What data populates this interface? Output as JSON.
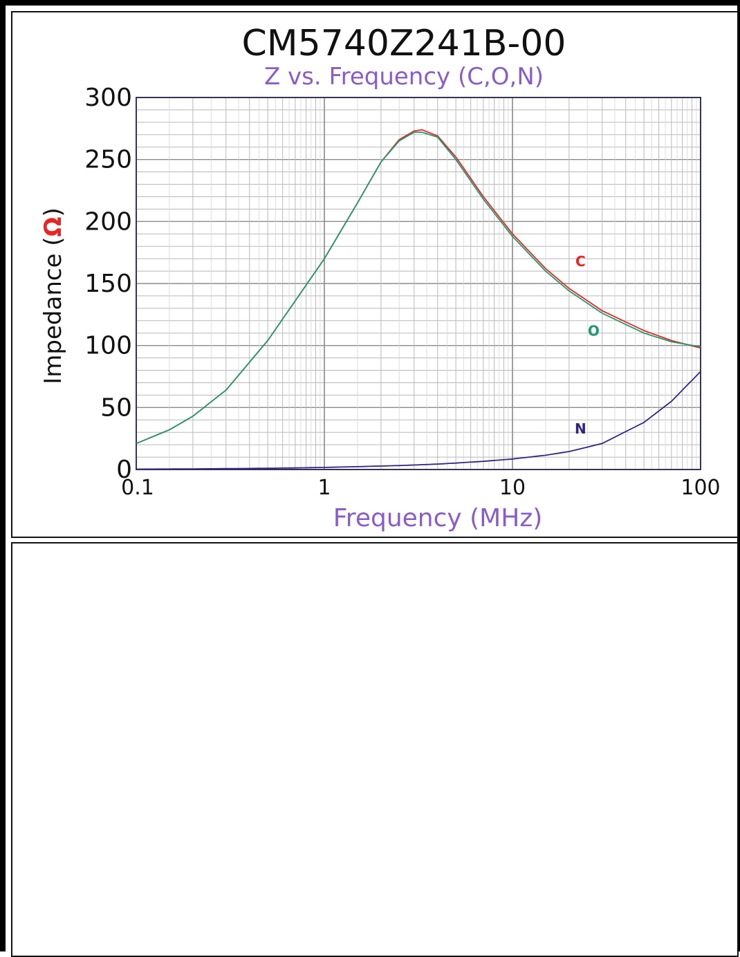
{
  "chart_data": {
    "type": "line",
    "title": "CM5740Z241B-00",
    "subtitle": "Z vs. Frequency (C,O,N)",
    "xlabel": "Frequency (MHz)",
    "ylabel_prefix": "Impedance (",
    "ylabel_unit": "Ω",
    "ylabel_suffix": ")",
    "xscale": "log",
    "xlim": [
      0.1,
      100
    ],
    "ylim": [
      0,
      300
    ],
    "grid": true,
    "x_ticks": [
      "0.1",
      "1",
      "10",
      "100"
    ],
    "y_ticks": [
      "0",
      "50",
      "100",
      "150",
      "200",
      "250",
      "300"
    ],
    "x": [
      0.1,
      0.15,
      0.2,
      0.3,
      0.5,
      0.7,
      1,
      1.5,
      2,
      2.5,
      3,
      3.3,
      4,
      5,
      7,
      10,
      15,
      20,
      30,
      50,
      70,
      100
    ],
    "series": [
      {
        "name": "C",
        "color": "#ee2222",
        "values": [
          21,
          32,
          43,
          64,
          104,
          136,
          170,
          215,
          248,
          266,
          273,
          274,
          269,
          252,
          220,
          190,
          162,
          146,
          128,
          112,
          104,
          98
        ]
      },
      {
        "name": "O",
        "color": "#1e9a6e",
        "values": [
          21,
          32,
          43,
          64,
          104,
          136,
          170,
          215,
          248,
          265,
          272,
          272,
          268,
          250,
          218,
          188,
          160,
          144,
          126,
          110,
          103,
          99
        ]
      },
      {
        "name": "N",
        "color": "#332288",
        "values": [
          0.3,
          0.4,
          0.5,
          0.7,
          1.0,
          1.3,
          1.7,
          2.3,
          2.8,
          3.2,
          3.6,
          3.9,
          4.4,
          5.2,
          6.6,
          8.5,
          11.5,
          14.5,
          21,
          38,
          55,
          79
        ]
      }
    ],
    "series_labels": [
      {
        "text": "C",
        "x": 23,
        "y": 164,
        "color": "#ee2222"
      },
      {
        "text": "O",
        "x": 27,
        "y": 108,
        "color": "#1e9a6e"
      },
      {
        "text": "N",
        "x": 23,
        "y": 29,
        "color": "#332288"
      }
    ]
  },
  "colors": {
    "title": "#111111",
    "subtitle": "#8a5cc8",
    "xlabel": "#8a5cc8",
    "ylabel": "#111111",
    "unit": "#ee2222",
    "grid": "#b8b8b8",
    "axis": "#3a3a6a",
    "plot_border": "#333355"
  }
}
